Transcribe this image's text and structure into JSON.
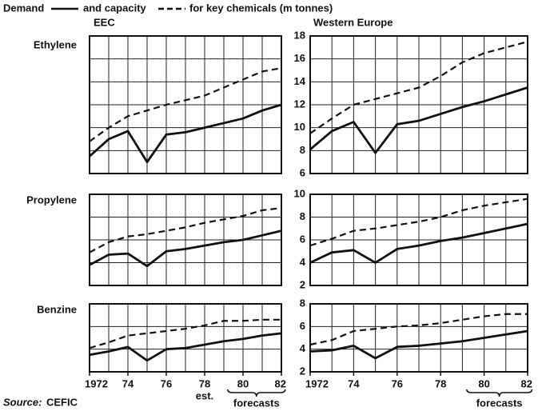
{
  "legend": {
    "demand": "Demand",
    "capacity": "and capacity",
    "suffix": "for key chemicals (m tonnes)"
  },
  "columns": [
    "EEC",
    "Western Europe"
  ],
  "rows": [
    "Ethylene",
    "Propylene",
    "Benzine"
  ],
  "source_label": "Source:",
  "source": "CEFIC",
  "chart_data": [
    {
      "type": "line",
      "x": [
        1972,
        1973,
        1974,
        1975,
        1976,
        1977,
        1978,
        1979,
        1980,
        1981,
        1982
      ],
      "xlim": [
        1972,
        1982
      ],
      "grid": true,
      "series": [
        {
          "color": "#111",
          "dash": "solid",
          "values": [
            7.5,
            9.0,
            9.7,
            7.0,
            9.4,
            9.6,
            10.0,
            10.4,
            10.8,
            11.5,
            12.0
          ]
        },
        {
          "color": "#111",
          "dash": "dashed",
          "values": [
            8.8,
            10.0,
            11.0,
            11.5,
            12.0,
            12.4,
            12.8,
            13.5,
            14.2,
            14.9,
            15.2
          ]
        }
      ]
    },
    {
      "type": "line",
      "x": [
        1972,
        1973,
        1974,
        1975,
        1976,
        1977,
        1978,
        1979,
        1980,
        1981,
        1982
      ],
      "xlim": [
        1972,
        1982
      ],
      "grid": true,
      "ylim": [
        6,
        18
      ],
      "yticks": [
        6,
        8,
        10,
        12,
        14,
        16,
        18
      ],
      "series": [
        {
          "color": "#111",
          "dash": "solid",
          "values": [
            8.1,
            9.7,
            10.5,
            7.8,
            10.3,
            10.6,
            11.2,
            11.8,
            12.3,
            12.9,
            13.5
          ]
        },
        {
          "color": "#111",
          "dash": "dashed",
          "values": [
            9.5,
            10.8,
            12.0,
            12.5,
            13.0,
            13.5,
            14.5,
            15.7,
            16.5,
            17.0,
            17.5
          ]
        }
      ]
    },
    {
      "type": "line",
      "x": [
        1972,
        1973,
        1974,
        1975,
        1976,
        1977,
        1978,
        1979,
        1980,
        1981,
        1982
      ],
      "xlim": [
        1972,
        1982
      ],
      "grid": true,
      "series": [
        {
          "color": "#111",
          "dash": "solid",
          "values": [
            3.8,
            4.7,
            4.8,
            3.7,
            5.0,
            5.2,
            5.5,
            5.8,
            6.0,
            6.4,
            6.8
          ]
        },
        {
          "color": "#111",
          "dash": "dashed",
          "values": [
            4.9,
            5.8,
            6.3,
            6.5,
            6.8,
            7.1,
            7.5,
            7.8,
            8.1,
            8.6,
            8.8
          ]
        }
      ]
    },
    {
      "type": "line",
      "x": [
        1972,
        1973,
        1974,
        1975,
        1976,
        1977,
        1978,
        1979,
        1980,
        1981,
        1982
      ],
      "xlim": [
        1972,
        1982
      ],
      "grid": true,
      "ylim": [
        2,
        10
      ],
      "yticks": [
        2,
        4,
        6,
        8,
        10
      ],
      "series": [
        {
          "color": "#111",
          "dash": "solid",
          "values": [
            4.0,
            4.9,
            5.1,
            4.0,
            5.2,
            5.5,
            5.9,
            6.2,
            6.6,
            7.0,
            7.4
          ]
        },
        {
          "color": "#111",
          "dash": "dashed",
          "values": [
            5.5,
            6.1,
            6.8,
            7.0,
            7.3,
            7.6,
            8.0,
            8.6,
            9.0,
            9.3,
            9.6
          ]
        }
      ]
    },
    {
      "type": "line",
      "x": [
        1972,
        1973,
        1974,
        1975,
        1976,
        1977,
        1978,
        1979,
        1980,
        1981,
        1982
      ],
      "xlim": [
        1972,
        1982
      ],
      "grid": true,
      "xticks": [
        1972,
        {
          "value": 1974,
          "label": "74"
        },
        {
          "value": 1976,
          "label": "76"
        },
        {
          "value": 1978,
          "label": "78"
        },
        {
          "value": 1980,
          "label": "80"
        },
        {
          "value": 1982,
          "label": "82"
        }
      ],
      "annotations": [
        "est.",
        "forecasts"
      ],
      "series": [
        {
          "color": "#111",
          "dash": "solid",
          "values": [
            3.5,
            3.8,
            4.2,
            3.0,
            4.0,
            4.1,
            4.4,
            4.7,
            4.9,
            5.2,
            5.4
          ]
        },
        {
          "color": "#111",
          "dash": "dashed",
          "values": [
            4.1,
            4.6,
            5.2,
            5.4,
            5.6,
            5.8,
            6.1,
            6.5,
            6.5,
            6.6,
            6.6
          ]
        }
      ]
    },
    {
      "type": "line",
      "x": [
        1972,
        1973,
        1974,
        1975,
        1976,
        1977,
        1978,
        1979,
        1980,
        1981,
        1982
      ],
      "xlim": [
        1972,
        1982
      ],
      "grid": true,
      "ylim": [
        2,
        8
      ],
      "yticks": [
        2,
        4,
        6,
        8
      ],
      "xticks": [
        1972,
        {
          "value": 1974,
          "label": "74"
        },
        {
          "value": 1976,
          "label": "76"
        },
        {
          "value": 1978,
          "label": "78"
        },
        {
          "value": 1980,
          "label": "80"
        },
        {
          "value": 1982,
          "label": "82"
        }
      ],
      "annotations": [
        "forecasts"
      ],
      "series": [
        {
          "color": "#111",
          "dash": "solid",
          "values": [
            3.8,
            3.9,
            4.3,
            3.2,
            4.2,
            4.3,
            4.5,
            4.7,
            5.0,
            5.3,
            5.6
          ]
        },
        {
          "color": "#111",
          "dash": "dashed",
          "values": [
            4.4,
            4.8,
            5.6,
            5.8,
            6.0,
            6.1,
            6.3,
            6.6,
            6.9,
            7.1,
            7.1
          ]
        }
      ]
    }
  ]
}
